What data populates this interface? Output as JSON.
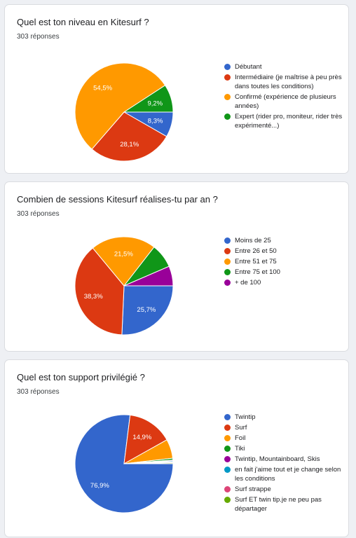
{
  "colors": {
    "blue": "#3366cc",
    "red": "#dc3912",
    "orange": "#ff9900",
    "green": "#109618",
    "purple": "#990099",
    "teal": "#0099c6",
    "pink": "#dd4477",
    "lime": "#66aa00"
  },
  "cards": [
    {
      "title": "Quel est ton niveau en Kitesurf ?",
      "count": "303 réponses"
    },
    {
      "title": "Combien de sessions Kitesurf réalises-tu par an ?",
      "count": "303 réponses"
    },
    {
      "title": "Quel est ton support privilégié ?",
      "count": "303 réponses"
    }
  ],
  "chart_data": [
    {
      "type": "pie",
      "title": "Quel est ton niveau en Kitesurf ?",
      "labels": [
        "Débutant",
        "Intermédiaire (je maîtrise à peu près dans toutes les conditions)",
        "Confirmé (expérience de plusieurs années)",
        "Expert (rider pro, moniteur, rider très expérimenté...)"
      ],
      "values": [
        8.3,
        28.1,
        54.5,
        9.2
      ],
      "value_labels": [
        "8,3%",
        "28,1%",
        "54,5%",
        "9,2%"
      ],
      "colors": [
        "#3366cc",
        "#dc3912",
        "#ff9900",
        "#109618"
      ],
      "legend": "right"
    },
    {
      "type": "pie",
      "title": "Combien de sessions Kitesurf réalises-tu par an ?",
      "labels": [
        "Moins de 25",
        "Entre 26 et 50",
        "Entre 51 et 75",
        "Entre 75 et 100",
        "+ de 100"
      ],
      "values": [
        25.7,
        38.3,
        21.5,
        8.0,
        6.5
      ],
      "value_labels": [
        "25,7%",
        "38,3%",
        "21,5%",
        "",
        ""
      ],
      "colors": [
        "#3366cc",
        "#dc3912",
        "#ff9900",
        "#109618",
        "#990099"
      ],
      "legend": "right"
    },
    {
      "type": "pie",
      "title": "Quel est ton support privilégié ?",
      "labels": [
        "Twintip",
        "Surf",
        "Foil",
        "Tiki",
        "Twintip, Mountainboard, Skis",
        "en fait j'aime tout et je change selon les conditions",
        "Surf strappe",
        "Surf ET twin tip.je ne peu pas départager"
      ],
      "values": [
        76.9,
        14.9,
        6.3,
        0.6,
        0.3,
        0.3,
        0.3,
        0.3
      ],
      "value_labels": [
        "76,9%",
        "14,9%",
        "",
        "",
        "",
        "",
        "",
        ""
      ],
      "colors": [
        "#3366cc",
        "#dc3912",
        "#ff9900",
        "#109618",
        "#990099",
        "#0099c6",
        "#dd4477",
        "#66aa00"
      ],
      "legend": "right"
    }
  ]
}
